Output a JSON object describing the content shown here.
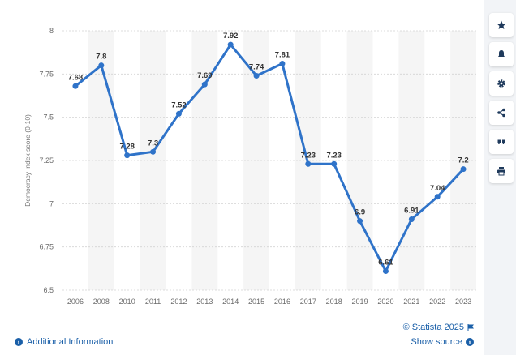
{
  "chart_data": {
    "type": "line",
    "categories": [
      "2006",
      "2008",
      "2010",
      "2011",
      "2012",
      "2013",
      "2014",
      "2015",
      "2016",
      "2017",
      "2018",
      "2019",
      "2020",
      "2021",
      "2022",
      "2023"
    ],
    "values": [
      7.68,
      7.8,
      7.28,
      7.3,
      7.52,
      7.69,
      7.92,
      7.74,
      7.81,
      7.23,
      7.23,
      6.9,
      6.61,
      6.91,
      7.04,
      7.2
    ],
    "data_labels": [
      "7.68",
      "7.8",
      "7.28",
      "7.3",
      "7.52",
      "7.69",
      "7.92",
      "7.74",
      "7.81",
      "7.23",
      "7.23",
      "6.9",
      "6.61",
      "6.91",
      "7.04",
      "7.2"
    ],
    "ylabel": "Democracy index score (0-10)",
    "ylim": [
      6.5,
      8
    ],
    "yticks": [
      "6.5",
      "6.75",
      "7",
      "7.25",
      "7.5",
      "7.75",
      "8"
    ],
    "grid": true,
    "line_color": "#2f73c9"
  },
  "footer": {
    "additional_info": "Additional Information",
    "copyright": "© Statista 2025",
    "show_source": "Show source"
  },
  "sidebar_icons": [
    "star-icon",
    "bell-icon",
    "gear-icon",
    "share-icon",
    "quote-icon",
    "print-icon"
  ],
  "colors": {
    "link": "#1a5fa8",
    "band": "#f5f5f5"
  }
}
